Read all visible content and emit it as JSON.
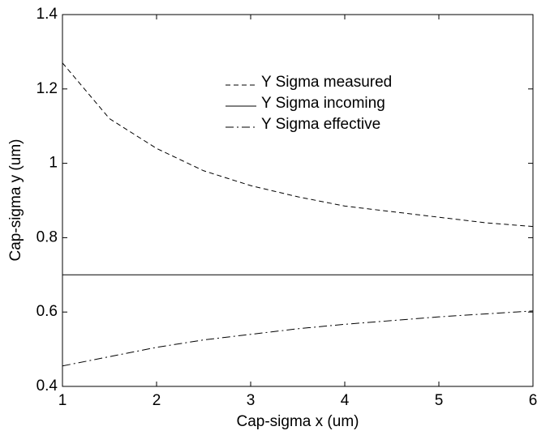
{
  "chart_data": {
    "type": "line",
    "xlabel": "Cap-sigma x (um)",
    "ylabel": "Cap-sigma y (um)",
    "x": [
      1,
      1.5,
      2,
      2.5,
      3,
      3.5,
      4,
      4.5,
      5,
      5.5,
      6
    ],
    "series": [
      {
        "name": "Y Sigma measured",
        "color": "#000000",
        "linestyle": "dashed",
        "values": [
          1.27,
          1.12,
          1.04,
          0.98,
          0.94,
          0.91,
          0.885,
          0.87,
          0.855,
          0.84,
          0.83
        ]
      },
      {
        "name": "Y Sigma incoming",
        "color": "#000000",
        "linestyle": "solid",
        "values": [
          0.7,
          0.7,
          0.7,
          0.7,
          0.7,
          0.7,
          0.7,
          0.7,
          0.7,
          0.7,
          0.7
        ]
      },
      {
        "name": "Y Sigma effective",
        "color": "#000000",
        "linestyle": "dashdot",
        "values": [
          0.455,
          0.48,
          0.505,
          0.525,
          0.54,
          0.555,
          0.567,
          0.577,
          0.587,
          0.595,
          0.603
        ]
      }
    ],
    "xlim": [
      1,
      6
    ],
    "xticks": [
      1,
      2,
      3,
      4,
      5,
      6
    ],
    "ylim": [
      0.4,
      1.4
    ],
    "yticks": [
      0.4,
      0.6,
      0.8,
      1,
      1.2,
      1.4
    ],
    "grid": false,
    "legend": "top"
  }
}
